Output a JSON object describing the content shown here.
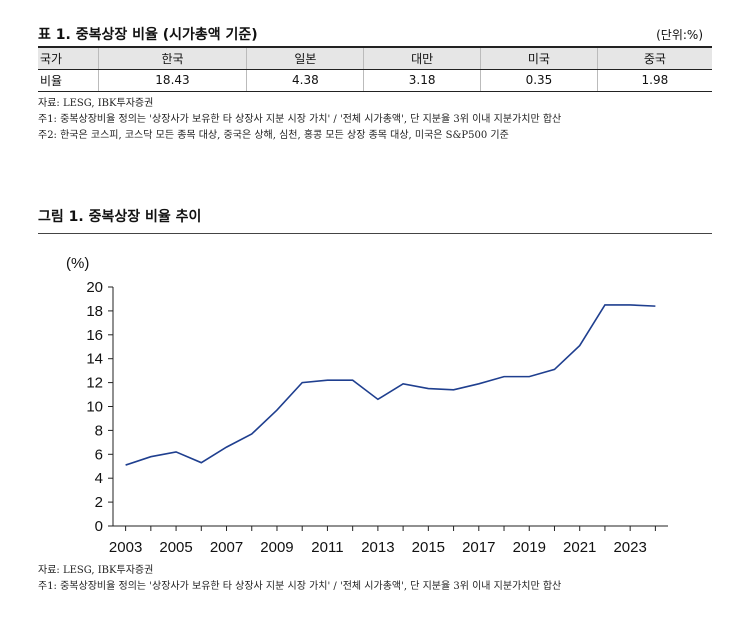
{
  "table": {
    "title": "표 1. 중복상장 비율 (시가총액 기준)",
    "unit": "(단위:%)",
    "header": [
      "국가",
      "한국",
      "일본",
      "대만",
      "미국",
      "중국"
    ],
    "row_label": "비율",
    "values": [
      "18.43",
      "4.38",
      "3.18",
      "0.35",
      "1.98"
    ]
  },
  "table_notes": [
    "자료: LESG, IBK투자증권",
    "주1: 중복상장비율 정의는 '상장사가 보유한 타 상장사 지분 시장 가치' / '전체 시가총액', 단 지분율 3위 이내 지분가치만 합산",
    "주2: 한국은 코스피, 코스닥 모든 종목 대상, 중국은 상해, 심천, 홍콩 모든 상장 종목 대상, 미국은 S&P500 기준"
  ],
  "figure": {
    "title": "그림 1. 중복상장 비율 추이"
  },
  "figure_notes": [
    "자료: LESG, IBK투자증권",
    "주1: 중복상장비율 정의는 '상장사가 보유한 타 상장사 지분 시장 가치' / '전체 시가총액', 단 지분율 3위 이내 지분가치만 합산"
  ],
  "chart_data": {
    "type": "line",
    "ylabel": "(%)",
    "ylim": [
      0,
      20
    ],
    "yticks": [
      "0",
      "2",
      "4",
      "6",
      "8",
      "10",
      "12",
      "14",
      "16",
      "18",
      "20"
    ],
    "xticks": [
      "2003",
      "2005",
      "2007",
      "2009",
      "2011",
      "2013",
      "2015",
      "2017",
      "2019",
      "2021",
      "2023"
    ],
    "x": [
      2003,
      2004,
      2005,
      2006,
      2007,
      2008,
      2009,
      2010,
      2011,
      2012,
      2013,
      2014,
      2015,
      2016,
      2017,
      2018,
      2019,
      2020,
      2021,
      2022,
      2023,
      2024
    ],
    "series": [
      {
        "values": [
          5.1,
          5.8,
          6.2,
          5.3,
          6.6,
          7.7,
          9.7,
          12.0,
          12.2,
          12.2,
          10.6,
          11.9,
          11.5,
          11.4,
          11.9,
          12.5,
          12.5,
          13.1,
          15.1,
          18.5,
          18.5,
          18.4
        ]
      }
    ],
    "line_color": "#1f3f8f",
    "grid": false
  }
}
